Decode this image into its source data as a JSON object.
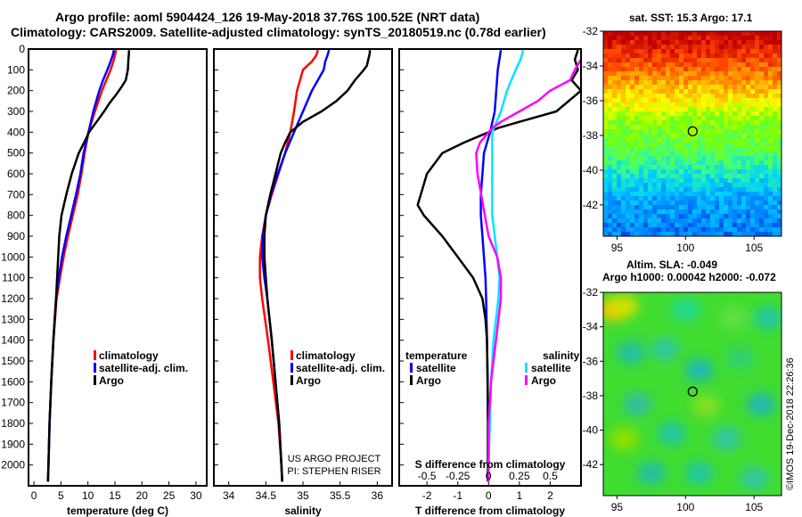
{
  "header": {
    "title_line1": "Argo profile: aoml 5904424_126 19-May-2018 37.76S 100.52E (NRT data)",
    "title_line2": "Climatology: CARS2009. Satellite-adjusted climatology: synTS_20180519.nc (0.78d earlier)"
  },
  "colors": {
    "climatology": "#ff0000",
    "satellite": "#0000ff",
    "argo": "#000000",
    "satellite_s": "#00e5ff",
    "argo_s": "#ff00ff"
  },
  "chart_data": [
    {
      "id": "temperature",
      "type": "line",
      "xlabel": "temperature (deg C)",
      "ylabel": "",
      "xlim": [
        -1,
        32
      ],
      "ylim": [
        2100,
        0
      ],
      "xticks": [
        0,
        5,
        10,
        15,
        20,
        25,
        30
      ],
      "yticks": [
        0,
        100,
        200,
        300,
        400,
        500,
        600,
        700,
        800,
        900,
        1000,
        1100,
        1200,
        1300,
        1400,
        1500,
        1600,
        1700,
        1800,
        1900,
        2000
      ],
      "legend": [
        "climatology",
        "satellite-adj. clim.",
        "Argo"
      ],
      "series": [
        {
          "name": "climatology",
          "depth": [
            5,
            30,
            60,
            100,
            150,
            200,
            300,
            400,
            500,
            600,
            700,
            800,
            900,
            1000,
            1100,
            1200,
            1400,
            1600,
            1800,
            2000,
            2080
          ],
          "values": [
            15.2,
            15.0,
            14.7,
            14.2,
            13.4,
            12.6,
            11.3,
            10.1,
            9.4,
            8.8,
            8.1,
            7.2,
            6.3,
            5.5,
            4.8,
            4.2,
            3.6,
            3.2,
            2.9,
            2.7,
            2.6
          ]
        },
        {
          "name": "satellite-adj. clim.",
          "depth": [
            5,
            30,
            60,
            100,
            150,
            200,
            300,
            400,
            500,
            600,
            700,
            800,
            900,
            1000,
            1100,
            1200,
            1400,
            1600,
            1800,
            2000,
            2080
          ],
          "values": [
            14.8,
            14.6,
            14.2,
            13.6,
            12.8,
            12.1,
            11.0,
            10.1,
            9.2,
            8.6,
            7.8,
            6.9,
            6.0,
            5.2,
            4.6,
            4.1,
            3.6,
            3.2,
            2.9,
            2.7,
            2.6
          ]
        },
        {
          "name": "Argo",
          "depth": [
            5,
            20,
            50,
            100,
            150,
            180,
            220,
            260,
            300,
            350,
            400,
            450,
            500,
            600,
            700,
            800,
            900,
            1000,
            1100,
            1200,
            1400,
            1600,
            1800,
            2000,
            2080
          ],
          "values": [
            17.6,
            17.6,
            17.5,
            17.4,
            17.0,
            16.3,
            15.2,
            14.0,
            13.0,
            11.6,
            10.2,
            9.3,
            8.3,
            7.0,
            6.0,
            5.1,
            4.7,
            4.5,
            4.3,
            4.1,
            3.6,
            3.2,
            2.9,
            2.7,
            2.6
          ]
        }
      ]
    },
    {
      "id": "salinity",
      "type": "line",
      "xlabel": "salinity",
      "ylabel": "",
      "xlim": [
        33.8,
        36.2
      ],
      "ylim": [
        2100,
        0
      ],
      "xticks": [
        34,
        34.5,
        35,
        35.5,
        36
      ],
      "xtick_labels": [
        "34",
        "34.5",
        "35",
        "35.5",
        "36"
      ],
      "legend": [
        "climatology",
        "satellite-adj. clim.",
        "Argo"
      ],
      "credit": [
        "US ARGO PROJECT",
        "PI: STEPHEN RISER"
      ],
      "series": [
        {
          "name": "climatology",
          "depth": [
            5,
            30,
            60,
            100,
            150,
            200,
            300,
            400,
            500,
            600,
            700,
            800,
            900,
            1000,
            1100,
            1200,
            1400,
            1600,
            1800,
            2000,
            2080
          ],
          "values": [
            35.2,
            35.18,
            35.12,
            35.0,
            34.96,
            34.92,
            34.88,
            34.83,
            34.76,
            34.67,
            34.58,
            34.5,
            34.45,
            34.42,
            34.42,
            34.45,
            34.53,
            34.6,
            34.67,
            34.71,
            34.72
          ]
        },
        {
          "name": "satellite-adj. clim.",
          "depth": [
            5,
            30,
            60,
            100,
            150,
            200,
            300,
            400,
            500,
            600,
            700,
            800,
            900,
            1000,
            1100,
            1200,
            1400,
            1600,
            1800,
            2000,
            2080
          ],
          "values": [
            35.35,
            35.33,
            35.3,
            35.28,
            35.2,
            35.12,
            35.0,
            34.88,
            34.76,
            34.66,
            34.57,
            34.5,
            34.46,
            34.45,
            34.48,
            34.52,
            34.58,
            34.63,
            34.68,
            34.71,
            34.72
          ]
        },
        {
          "name": "Argo",
          "depth": [
            5,
            20,
            50,
            80,
            100,
            150,
            200,
            250,
            300,
            350,
            400,
            450,
            500,
            600,
            700,
            800,
            900,
            1000,
            1100,
            1200,
            1400,
            1600,
            1800,
            2000,
            2080
          ],
          "values": [
            35.9,
            35.9,
            35.88,
            35.86,
            35.82,
            35.7,
            35.6,
            35.45,
            35.25,
            35.0,
            34.83,
            34.76,
            34.7,
            34.63,
            34.56,
            34.5,
            34.48,
            34.48,
            34.5,
            34.52,
            34.58,
            34.63,
            34.68,
            34.71,
            34.72
          ]
        }
      ]
    },
    {
      "id": "differences",
      "type": "line",
      "xlabel": "T difference from climatology",
      "xlabel_top": "S difference from climatology",
      "xlim": [
        -2.9,
        3.0
      ],
      "ylim": [
        2100,
        0
      ],
      "xticks": [
        -2,
        -1,
        0,
        1,
        2
      ],
      "s_xticks": [
        -0.5,
        -0.25,
        0,
        0.25,
        0.5
      ],
      "s_xtick_labels": [
        "-0.5",
        "-0.25",
        "0",
        "0.25",
        "0.5"
      ],
      "legend_titles": [
        "temperature",
        "salinity"
      ],
      "legend": [
        "satellite",
        "Argo"
      ],
      "series": [
        {
          "name": "T satellite",
          "depth": [
            5,
            50,
            100,
            200,
            300,
            400,
            500,
            600,
            700,
            800,
            900,
            1000,
            1100,
            1200,
            1400,
            1600,
            1800,
            2000,
            2080
          ],
          "values": [
            0.4,
            0.35,
            0.3,
            0.25,
            0.2,
            0.05,
            -0.15,
            -0.2,
            -0.25,
            -0.25,
            -0.2,
            -0.15,
            -0.1,
            -0.08,
            -0.05,
            -0.03,
            -0.02,
            -0.02,
            -0.02
          ]
        },
        {
          "name": "T Argo",
          "depth": [
            5,
            50,
            100,
            150,
            200,
            250,
            300,
            350,
            380,
            400,
            450,
            500,
            600,
            700,
            750,
            800,
            900,
            1000,
            1100,
            1200,
            1300,
            1400,
            1600,
            1800,
            2000,
            2080
          ],
          "values": [
            2.9,
            2.8,
            2.9,
            2.7,
            3.0,
            2.6,
            2.2,
            1.0,
            0.3,
            0.0,
            -0.8,
            -1.5,
            -2.0,
            -2.2,
            -2.3,
            -2.1,
            -1.5,
            -1.0,
            -0.5,
            -0.2,
            -0.1,
            -0.05,
            -0.03,
            -0.02,
            -0.02,
            -0.02
          ]
        },
        {
          "name": "S satellite",
          "depth": [
            5,
            50,
            100,
            200,
            300,
            400,
            500,
            600,
            700,
            800,
            900,
            1000,
            1100,
            1200,
            1400,
            1600,
            1800,
            2000,
            2080
          ],
          "values": [
            0.28,
            0.26,
            0.22,
            0.15,
            0.1,
            0.03,
            0.03,
            0.03,
            0.03,
            0.03,
            0.05,
            0.07,
            0.09,
            0.08,
            0.04,
            0.02,
            0.01,
            0.0,
            0.0
          ]
        },
        {
          "name": "S Argo",
          "depth": [
            5,
            50,
            100,
            150,
            200,
            250,
            300,
            350,
            380,
            400,
            450,
            500,
            600,
            700,
            800,
            900,
            1000,
            1100,
            1200,
            1300,
            1400,
            1600,
            1800,
            2000,
            2080
          ],
          "values": [
            0.78,
            0.75,
            0.7,
            0.66,
            0.5,
            0.4,
            0.25,
            0.1,
            0.03,
            0.0,
            -0.07,
            -0.1,
            -0.09,
            -0.06,
            -0.03,
            0.0,
            0.07,
            0.1,
            0.1,
            0.08,
            0.06,
            0.02,
            0.0,
            0.0,
            0.0
          ]
        }
      ]
    },
    {
      "id": "sst-map",
      "type": "heatmap",
      "title": "sat. SST: 15.3 Argo: 17.1",
      "xlim": [
        94,
        107
      ],
      "ylim": [
        -43.8,
        -32
      ],
      "xticks": [
        95,
        100,
        105
      ],
      "yticks": [
        -32,
        -34,
        -36,
        -38,
        -40,
        -42
      ],
      "marker": {
        "lon": 100.52,
        "lat": -37.76
      },
      "colorscale": [
        "#0000bf",
        "#0080ff",
        "#00d0ff",
        "#40ff80",
        "#80ff00",
        "#ffff00",
        "#ffa000",
        "#ff4000",
        "#c00000"
      ],
      "band_lats": [
        -32,
        -33.5,
        -34.8,
        -36,
        -37.2,
        -38.6,
        -40,
        -41.5,
        -43.8
      ],
      "band_levels": [
        8,
        7,
        6,
        5,
        4,
        3.5,
        2.5,
        1.5,
        1
      ]
    },
    {
      "id": "sla-map",
      "type": "heatmap",
      "title": "Altim. SLA: -0.049",
      "subtitle": "Argo h1000: 0.00042 h2000: -0.072",
      "xlim": [
        94,
        107
      ],
      "ylim": [
        -43.8,
        -32
      ],
      "xticks": [
        95,
        100,
        105
      ],
      "yticks": [
        -32,
        -34,
        -36,
        -38,
        -40,
        -42
      ],
      "marker": {
        "lon": 100.52,
        "lat": -37.76
      },
      "background": "#40dc30",
      "blobs": [
        {
          "lon": 94.8,
          "lat": -33,
          "color": "#ffc000"
        },
        {
          "lon": 95.5,
          "lat": -32.8,
          "color": "#d0e000"
        },
        {
          "lon": 100,
          "lat": -33,
          "color": "#20d890"
        },
        {
          "lon": 103.5,
          "lat": -33.5,
          "color": "#60e040"
        },
        {
          "lon": 106,
          "lat": -33.5,
          "color": "#20c8a0"
        },
        {
          "lon": 96,
          "lat": -35.5,
          "color": "#20c0a0"
        },
        {
          "lon": 98.5,
          "lat": -35.3,
          "color": "#30c8a0"
        },
        {
          "lon": 101,
          "lat": -36.5,
          "color": "#20b8b0"
        },
        {
          "lon": 104,
          "lat": -35.8,
          "color": "#30d070"
        },
        {
          "lon": 96.5,
          "lat": -38.5,
          "color": "#30c0a0"
        },
        {
          "lon": 101.5,
          "lat": -38.6,
          "color": "#80e020"
        },
        {
          "lon": 105.5,
          "lat": -38.5,
          "color": "#20b8b0"
        },
        {
          "lon": 95.5,
          "lat": -40.5,
          "color": "#90e000"
        },
        {
          "lon": 99,
          "lat": -40.2,
          "color": "#20c8a0"
        },
        {
          "lon": 103,
          "lat": -40.5,
          "color": "#30c8a0"
        },
        {
          "lon": 97.5,
          "lat": -42.5,
          "color": "#20c0a0"
        },
        {
          "lon": 101,
          "lat": -42.5,
          "color": "#20c8a0"
        },
        {
          "lon": 105,
          "lat": -42.8,
          "color": "#30c8a0"
        }
      ]
    }
  ],
  "footer": {
    "credit": "©IMOS 19-Dec-2018 22:26:36"
  }
}
